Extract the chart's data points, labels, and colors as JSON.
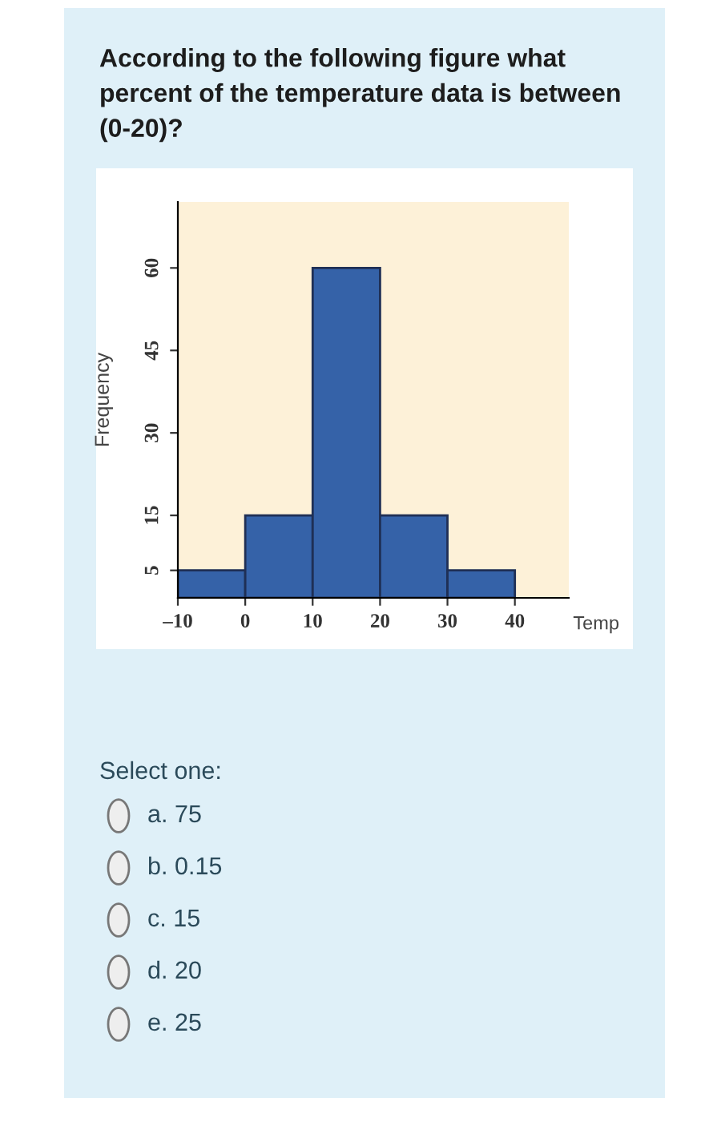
{
  "chart_data": {
    "type": "histogram",
    "title": "According to the following figure what percent of the temperature data is between (0-20)?",
    "xlabel": "Temp",
    "ylabel": "Frequency",
    "bins": [
      -10,
      0,
      10,
      20,
      30,
      40
    ],
    "values": [
      5,
      15,
      60,
      15,
      5
    ],
    "color": "#3562a8",
    "xlim": [
      -10,
      48
    ],
    "ylim": [
      0,
      72
    ],
    "xticks": [
      {
        "value": -10,
        "label": "–10"
      },
      0,
      10,
      20,
      30,
      40
    ],
    "yticks": [
      5,
      15,
      30,
      45,
      60
    ],
    "grid": false,
    "annotations": [
      "Select one:",
      "a. 75",
      "b. 0.15",
      "c. 15",
      "d. 20",
      "e. 25"
    ]
  }
}
